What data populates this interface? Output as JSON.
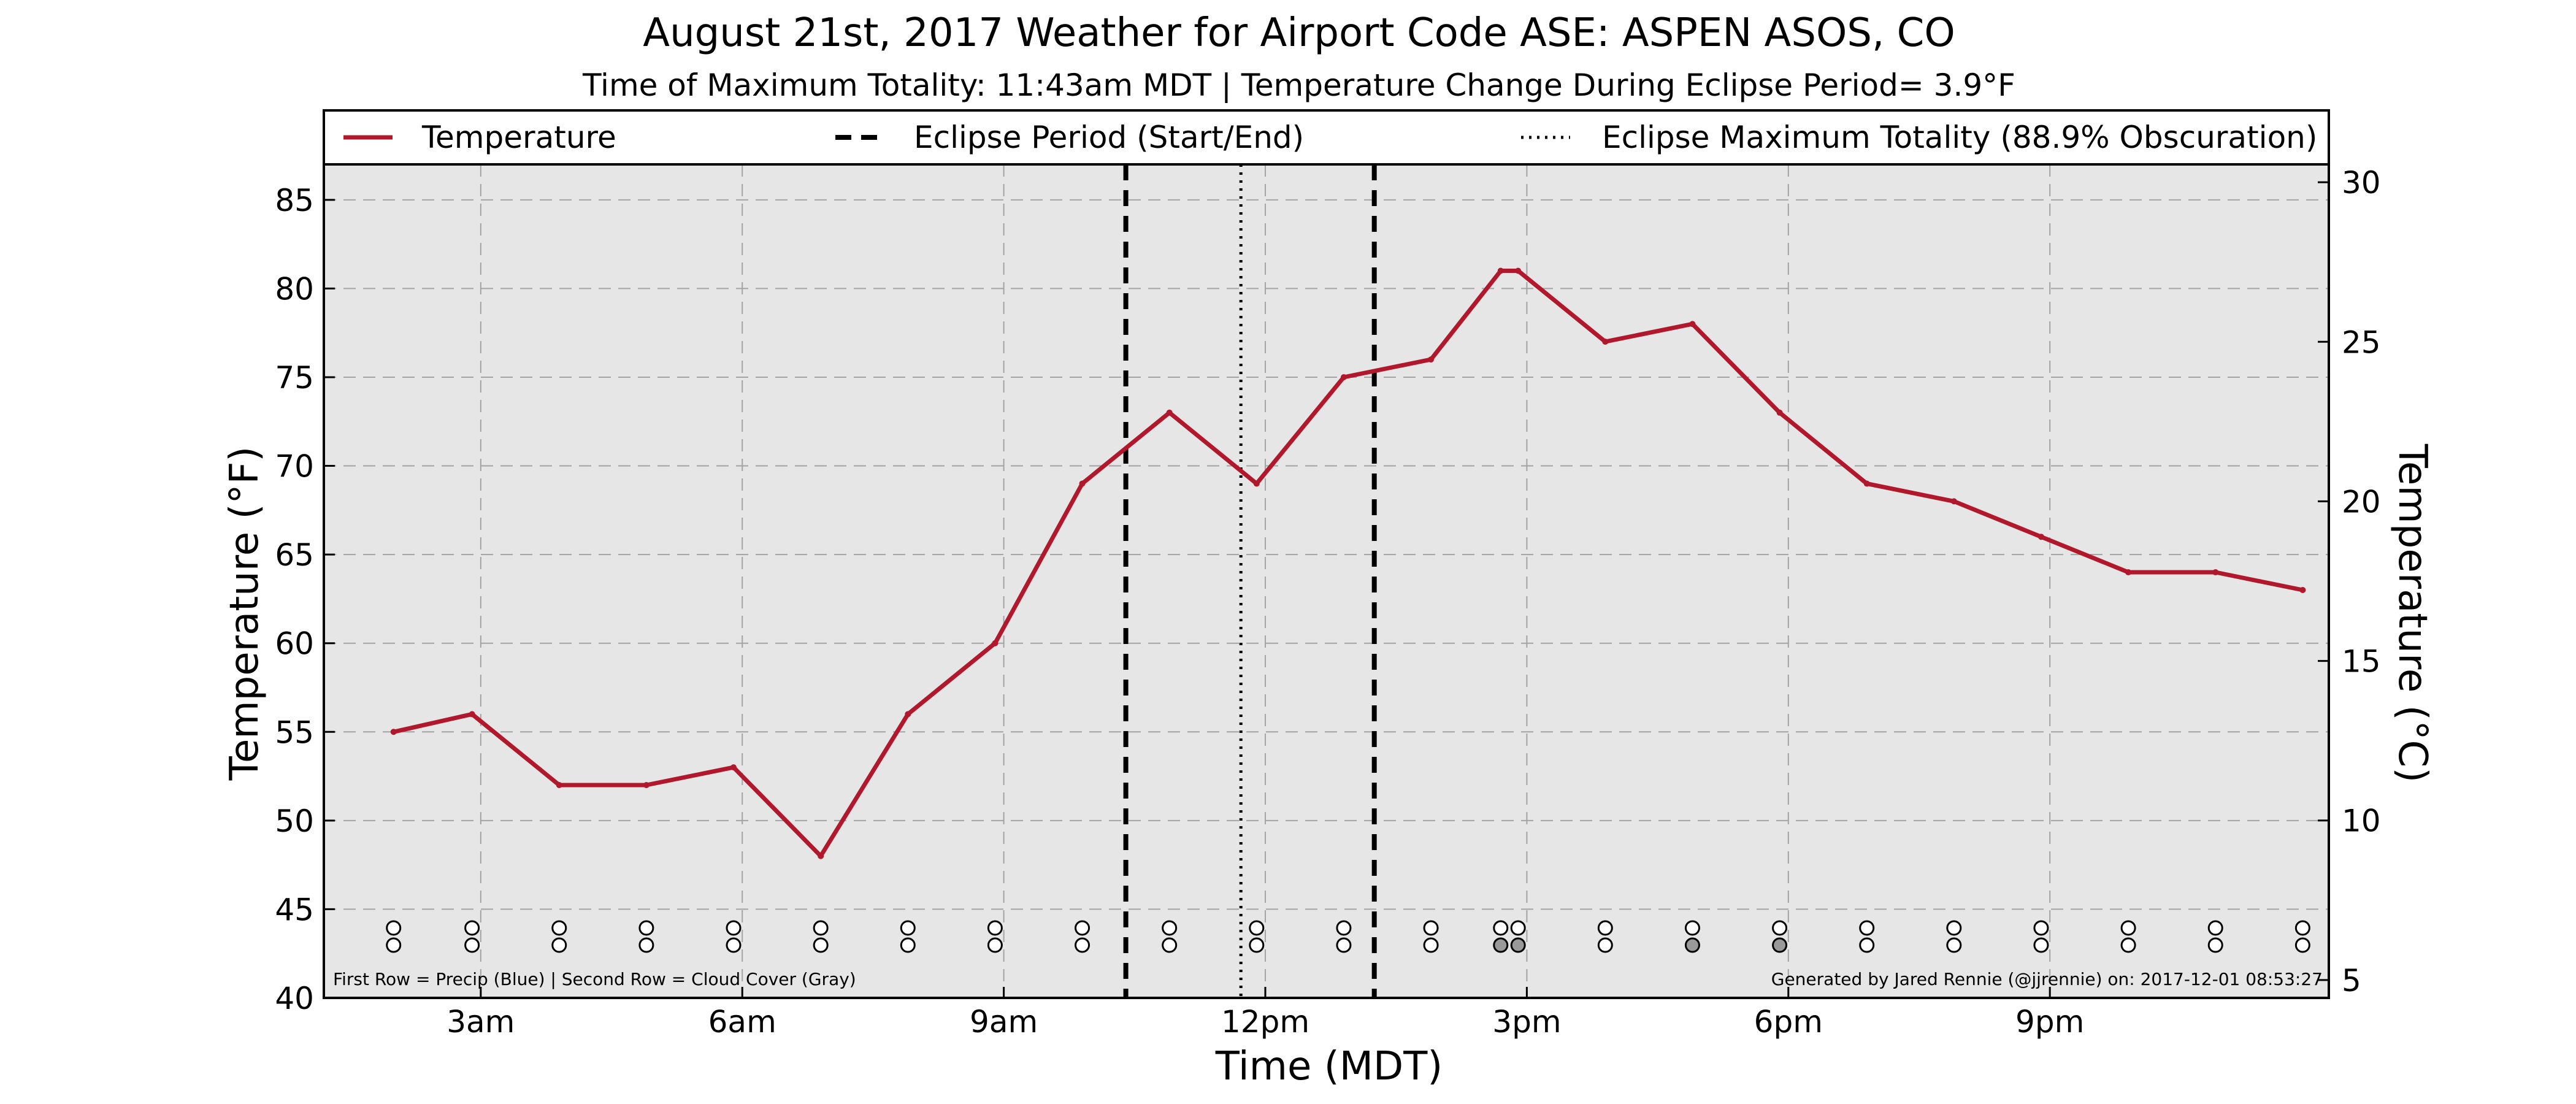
{
  "chart_data": {
    "type": "line",
    "title": "August 21st, 2017 Weather for Airport Code ASE: ASPEN ASOS, CO",
    "subtitle": "Time of Maximum Totality: 11:43am MDT | Temperature Change During Eclipse Period= 3.9°F",
    "xlabel": "Time (MDT)",
    "ylabel": "Temperature (°F)",
    "y2label": "Temperature (°C)",
    "xlim": [
      1.2,
      24.2
    ],
    "ylim": [
      40,
      87
    ],
    "y2lim": [
      4.44,
      30.56
    ],
    "grid": true,
    "legend_position": "top",
    "x_ticks": [
      {
        "x": 3,
        "label": "3am"
      },
      {
        "x": 6,
        "label": "6am"
      },
      {
        "x": 9,
        "label": "9am"
      },
      {
        "x": 12,
        "label": "12pm"
      },
      {
        "x": 15,
        "label": "3pm"
      },
      {
        "x": 18,
        "label": "6pm"
      },
      {
        "x": 21,
        "label": "9pm"
      }
    ],
    "y_ticks": [
      40,
      45,
      50,
      55,
      60,
      65,
      70,
      75,
      80,
      85
    ],
    "y2_ticks": [
      5,
      10,
      15,
      20,
      25,
      30
    ],
    "legend": {
      "temperature": "Temperature",
      "eclipse_period": "Eclipse Period (Start/End)",
      "eclipse_max": "Eclipse Maximum Totality (88.9% Obscuration)"
    },
    "series": [
      {
        "name": "Temperature",
        "color": "#b2182b",
        "x": [
          2.0,
          2.9,
          3.9,
          4.9,
          5.9,
          6.9,
          7.9,
          8.9,
          9.9,
          10.9,
          11.9,
          12.9,
          13.9,
          14.7,
          14.9,
          15.9,
          16.9,
          17.9,
          18.9,
          19.9,
          20.9,
          21.9,
          22.9,
          23.9
        ],
        "y": [
          55,
          56,
          52,
          52,
          53,
          48,
          56,
          60,
          69,
          73,
          69,
          75,
          76,
          81,
          81,
          77,
          78,
          73,
          69,
          68,
          66,
          64,
          64,
          63
        ]
      }
    ],
    "eclipse_period": {
      "start": 10.4,
      "end": 13.25,
      "color": "#000000"
    },
    "eclipse_max": {
      "x": 11.72,
      "color": "#000000"
    },
    "observations": {
      "precip_row": [
        {
          "x": 2.0,
          "filled": false
        },
        {
          "x": 2.9,
          "filled": false
        },
        {
          "x": 3.9,
          "filled": false
        },
        {
          "x": 4.9,
          "filled": false
        },
        {
          "x": 5.9,
          "filled": false
        },
        {
          "x": 6.9,
          "filled": false
        },
        {
          "x": 7.9,
          "filled": false
        },
        {
          "x": 8.9,
          "filled": false
        },
        {
          "x": 9.9,
          "filled": false
        },
        {
          "x": 10.9,
          "filled": false
        },
        {
          "x": 11.9,
          "filled": false
        },
        {
          "x": 12.9,
          "filled": false
        },
        {
          "x": 13.9,
          "filled": false
        },
        {
          "x": 14.7,
          "filled": false
        },
        {
          "x": 14.9,
          "filled": false
        },
        {
          "x": 15.9,
          "filled": false
        },
        {
          "x": 16.9,
          "filled": false
        },
        {
          "x": 17.9,
          "filled": false
        },
        {
          "x": 18.9,
          "filled": false
        },
        {
          "x": 19.9,
          "filled": false
        },
        {
          "x": 20.9,
          "filled": false
        },
        {
          "x": 21.9,
          "filled": false
        },
        {
          "x": 22.9,
          "filled": false
        },
        {
          "x": 23.9,
          "filled": false
        }
      ],
      "cloud_row": [
        {
          "x": 2.0,
          "filled": false
        },
        {
          "x": 2.9,
          "filled": false
        },
        {
          "x": 3.9,
          "filled": false
        },
        {
          "x": 4.9,
          "filled": false
        },
        {
          "x": 5.9,
          "filled": false
        },
        {
          "x": 6.9,
          "filled": false
        },
        {
          "x": 7.9,
          "filled": false
        },
        {
          "x": 8.9,
          "filled": false
        },
        {
          "x": 9.9,
          "filled": false
        },
        {
          "x": 10.9,
          "filled": false
        },
        {
          "x": 11.9,
          "filled": false
        },
        {
          "x": 12.9,
          "filled": false
        },
        {
          "x": 13.9,
          "filled": false
        },
        {
          "x": 14.7,
          "filled": true
        },
        {
          "x": 14.9,
          "filled": true
        },
        {
          "x": 15.9,
          "filled": false
        },
        {
          "x": 16.9,
          "filled": true
        },
        {
          "x": 17.9,
          "filled": true
        },
        {
          "x": 18.9,
          "filled": false
        },
        {
          "x": 19.9,
          "filled": false
        },
        {
          "x": 20.9,
          "filled": false
        },
        {
          "x": 21.9,
          "filled": false
        },
        {
          "x": 22.9,
          "filled": false
        },
        {
          "x": 23.9,
          "filled": false
        }
      ],
      "marker_color": "#999999"
    },
    "footnote_left": "First Row = Precip (Blue) | Second Row = Cloud Cover (Gray)",
    "footnote_right": "Generated by Jared Rennie (@jjrennie) on: 2017-12-01 08:53:27",
    "plot_background": "#e6e6e6"
  }
}
